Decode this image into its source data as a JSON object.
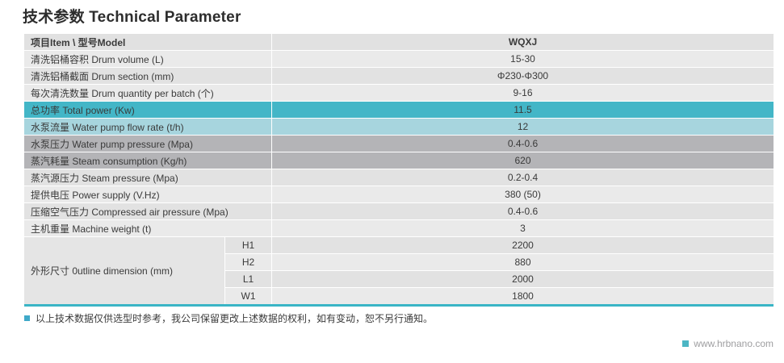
{
  "page": {
    "title": "技术参数 Technical Parameter",
    "note": "以上技术数据仅供选型时参考，我公司保留更改上述数据的权利，如有变动，恕不另行通知。",
    "website": "www.hrbnano.com"
  },
  "colors": {
    "teal_dark": "#43b6c7",
    "teal_light": "#a7d5de",
    "grey_row": "#b4b4b7",
    "row_light": "#eaeaea",
    "row_dark": "#e2e2e2",
    "table_bottom_border": "#3ab5c6",
    "note_bullet": "#3fa9c9",
    "website_bullet": "#4cb6c4",
    "website_text": "#9e9ea0"
  },
  "table": {
    "header": {
      "label": "项目Item \\ 型号Model",
      "value": "WQXJ"
    },
    "rows": [
      {
        "label": "清洗铝桶容积 Drum volume (L)",
        "value": "15-30"
      },
      {
        "label": "清洗铝桶截面 Drum section (mm)",
        "value": "Φ230-Φ300"
      },
      {
        "label": "每次清洗数量 Drum quantity per batch (个)",
        "value": "9-16"
      },
      {
        "label": "总功率 Total power (Kw)",
        "value": "11.5"
      },
      {
        "label": "水泵流量 Water pump flow rate (t/h)",
        "value": "12"
      },
      {
        "label": "水泵压力 Water pump pressure (Mpa)",
        "value": "0.4-0.6"
      },
      {
        "label": "蒸汽耗量 Steam consumption (Kg/h)",
        "value": "620"
      },
      {
        "label": "蒸汽源压力 Steam pressure (Mpa)",
        "value": "0.2-0.4"
      },
      {
        "label": "提供电压 Power supply (V.Hz)",
        "value": "380 (50)"
      },
      {
        "label": "压缩空气压力 Compressed air pressure (Mpa)",
        "value": "0.4-0.6"
      },
      {
        "label": "主机重量 Machine weight (t)",
        "value": "3"
      }
    ],
    "dimension": {
      "label": "外形尺寸 0utline dimension (mm)",
      "items": [
        {
          "key": "H1",
          "value": "2200"
        },
        {
          "key": "H2",
          "value": "880"
        },
        {
          "key": "L1",
          "value": "2000"
        },
        {
          "key": "W1",
          "value": "1800"
        }
      ]
    }
  }
}
